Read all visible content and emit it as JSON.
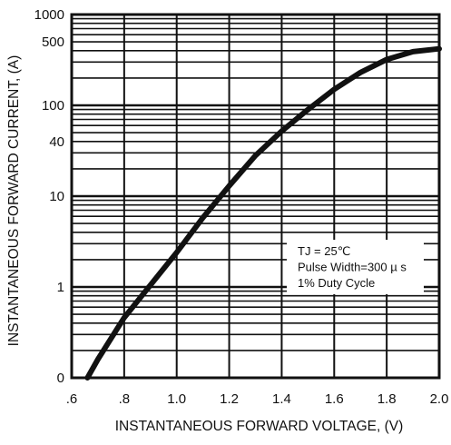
{
  "chart_data": {
    "type": "line",
    "xlabel": "INSTANTANEOUS FORWARD VOLTAGE, (V)",
    "ylabel": "INSTANTANEOUS FORWARD CURRENT, (A)",
    "x_scale": "linear",
    "y_scale": "log",
    "xlim": [
      0.6,
      2.0
    ],
    "ylim": [
      0.1,
      1000
    ],
    "x_ticks": [
      {
        "value": 0.6,
        "label": ".6"
      },
      {
        "value": 0.8,
        "label": ".8"
      },
      {
        "value": 1.0,
        "label": "1.0"
      },
      {
        "value": 1.2,
        "label": "1.2"
      },
      {
        "value": 1.4,
        "label": "1.4"
      },
      {
        "value": 1.6,
        "label": "1.6"
      },
      {
        "value": 1.8,
        "label": "1.8"
      },
      {
        "value": 2.0,
        "label": "2.0"
      }
    ],
    "y_ticks": [
      {
        "value": 1000,
        "label": "1000"
      },
      {
        "value": 500,
        "label": "500"
      },
      {
        "value": 100,
        "label": "100"
      },
      {
        "value": 40,
        "label": "40"
      },
      {
        "value": 10,
        "label": "10"
      },
      {
        "value": 1,
        "label": "1"
      },
      {
        "value": 0.1,
        "label": "0"
      }
    ],
    "grid": true,
    "series": [
      {
        "x": [
          0.66,
          0.7,
          0.8,
          0.9,
          1.0,
          1.1,
          1.2,
          1.3,
          1.4,
          1.5,
          1.6,
          1.7,
          1.8,
          1.9,
          2.0
        ],
        "y": [
          0.1,
          0.16,
          0.46,
          1.05,
          2.4,
          5.8,
          13,
          28,
          52,
          90,
          150,
          230,
          320,
          390,
          420
        ]
      }
    ],
    "annotation": {
      "lines": [
        "TJ = 25℃",
        "Pulse Width=300 µ s",
        "1% Duty Cycle"
      ],
      "position": "right-center"
    }
  }
}
